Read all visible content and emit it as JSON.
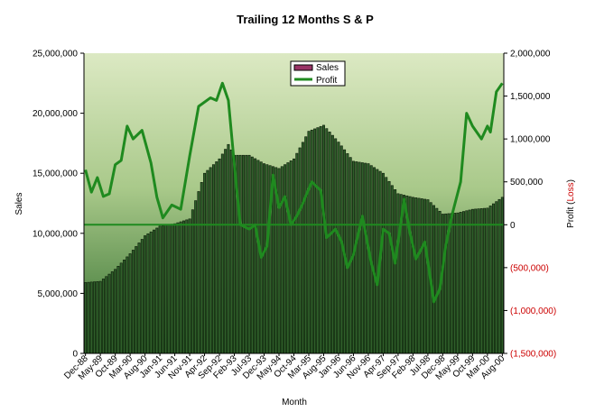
{
  "chart_data": {
    "type": "bar",
    "title": "Trailing 12 Months S & P",
    "xlabel": "Month",
    "ylabel": "Sales",
    "y2label_parts": [
      "Profit (",
      "Loss",
      ")"
    ],
    "ylim": [
      0,
      25000000
    ],
    "y2lim": [
      -1500000,
      2000000
    ],
    "grid": false,
    "legend_position": "top-center",
    "colors": {
      "plot_top": "#dce9c3",
      "plot_mid": "#a9c98a",
      "plot_bottom": "#2e6b2a",
      "bar_fill": "#2f5f2a",
      "bar_edge": "#0a1a08",
      "profit_line": "#1f8a1f",
      "zero_line": "#1f8a1f",
      "legend_sales_swatch": "#993366",
      "negative_tick": "#cc0000"
    },
    "legend": [
      {
        "label": "Sales",
        "kind": "bar"
      },
      {
        "label": "Profit",
        "kind": "line"
      }
    ],
    "y_ticks": [
      "0",
      "5,000,000",
      "10,000,000",
      "15,000,000",
      "20,000,000",
      "25,000,000"
    ],
    "y_tick_values": [
      0,
      5000000,
      10000000,
      15000000,
      20000000,
      25000000
    ],
    "y2_ticks": [
      "(1,500,000)",
      "(1,000,000)",
      "(500,000)",
      "0",
      "500,000",
      "1,000,000",
      "1,500,000",
      "2,000,000"
    ],
    "y2_tick_values": [
      -1500000,
      -1000000,
      -500000,
      0,
      500000,
      1000000,
      1500000,
      2000000
    ],
    "x_tick_labels": [
      "Dec-88",
      "May-89",
      "Oct-89",
      "Mar-90",
      "Aug-90",
      "Jan-91",
      "Jun-91",
      "Nov-91",
      "Apr-92",
      "Sep-92",
      "Feb-93",
      "Jul-93",
      "Dec-93",
      "May-94",
      "Oct-94",
      "Mar-95",
      "Aug-95",
      "Jan-96",
      "Jun-96",
      "Nov-96",
      "Apr-97",
      "Sep-97",
      "Feb-98",
      "Jul-98",
      "Dec-98",
      "May-99",
      "Oct-99",
      "Mar-00",
      "Aug-00"
    ],
    "x_tick_label_display": [
      "Dec-88",
      "May-89",
      "Oct-89",
      "Mar-90",
      "Aug-90",
      "Jan-91",
      "Jun-91",
      "Nov-91",
      "Apr-92",
      "Sep-92",
      "Feb-93",
      "Jul-93",
      "Dec-93",
      "May-94",
      "Oct-94",
      "Mar-95",
      "Aug-95",
      "Jan-96",
      "Jun-96",
      "Nov-96",
      "Apr-97",
      "Sep-97",
      "Feb-98",
      "Jul-98",
      "Dec-98",
      "May-99",
      "Oct-99",
      "Mar-00",
      "Aug-00"
    ],
    "tick_every": 5,
    "sales_keypoints": [
      {
        "month": "Dec-88",
        "value": 5900000
      },
      {
        "month": "May-89",
        "value": 6000000
      },
      {
        "month": "Oct-89",
        "value": 7000000
      },
      {
        "month": "Mar-90",
        "value": 8300000
      },
      {
        "month": "Aug-90",
        "value": 9800000
      },
      {
        "month": "Jan-91",
        "value": 10600000
      },
      {
        "month": "Jun-91",
        "value": 10800000
      },
      {
        "month": "Nov-91",
        "value": 11200000
      },
      {
        "month": "Apr-92",
        "value": 15000000
      },
      {
        "month": "Sep-92",
        "value": 16200000
      },
      {
        "month": "Dec-92",
        "value": 17400000
      },
      {
        "month": "Feb-93",
        "value": 16500000
      },
      {
        "month": "Jul-93",
        "value": 16500000
      },
      {
        "month": "Dec-93",
        "value": 15800000
      },
      {
        "month": "May-94",
        "value": 15400000
      },
      {
        "month": "Oct-94",
        "value": 16200000
      },
      {
        "month": "Mar-95",
        "value": 18500000
      },
      {
        "month": "Aug-95",
        "value": 19000000
      },
      {
        "month": "Jan-96",
        "value": 17600000
      },
      {
        "month": "Jun-96",
        "value": 16000000
      },
      {
        "month": "Nov-96",
        "value": 15800000
      },
      {
        "month": "Apr-97",
        "value": 15000000
      },
      {
        "month": "Sep-97",
        "value": 13300000
      },
      {
        "month": "Feb-98",
        "value": 13000000
      },
      {
        "month": "Jul-98",
        "value": 12800000
      },
      {
        "month": "Dec-98",
        "value": 11600000
      },
      {
        "month": "May-99",
        "value": 11700000
      },
      {
        "month": "Oct-99",
        "value": 12000000
      },
      {
        "month": "Mar-00",
        "value": 12100000
      },
      {
        "month": "Aug-00",
        "value": 13000000
      }
    ],
    "profit_keypoints": [
      {
        "month": "Dec-88",
        "value": 640000
      },
      {
        "month": "Feb-89",
        "value": 380000
      },
      {
        "month": "Apr-89",
        "value": 550000
      },
      {
        "month": "Jun-89",
        "value": 330000
      },
      {
        "month": "Aug-89",
        "value": 360000
      },
      {
        "month": "Oct-89",
        "value": 700000
      },
      {
        "month": "Dec-89",
        "value": 750000
      },
      {
        "month": "Feb-90",
        "value": 1150000
      },
      {
        "month": "Apr-90",
        "value": 1000000
      },
      {
        "month": "Jul-90",
        "value": 1100000
      },
      {
        "month": "Oct-90",
        "value": 720000
      },
      {
        "month": "Dec-90",
        "value": 320000
      },
      {
        "month": "Feb-91",
        "value": 80000
      },
      {
        "month": "May-91",
        "value": 230000
      },
      {
        "month": "Aug-91",
        "value": 180000
      },
      {
        "month": "Nov-91",
        "value": 800000
      },
      {
        "month": "Feb-92",
        "value": 1380000
      },
      {
        "month": "Jun-92",
        "value": 1480000
      },
      {
        "month": "Aug-92",
        "value": 1450000
      },
      {
        "month": "Oct-92",
        "value": 1650000
      },
      {
        "month": "Dec-92",
        "value": 1450000
      },
      {
        "month": "Feb-93",
        "value": 700000
      },
      {
        "month": "Apr-93",
        "value": 0
      },
      {
        "month": "Jul-93",
        "value": -50000
      },
      {
        "month": "Sep-93",
        "value": 0
      },
      {
        "month": "Nov-93",
        "value": -380000
      },
      {
        "month": "Jan-94",
        "value": -250000
      },
      {
        "month": "Mar-94",
        "value": 580000
      },
      {
        "month": "May-94",
        "value": 200000
      },
      {
        "month": "Jul-94",
        "value": 330000
      },
      {
        "month": "Sep-94",
        "value": 0
      },
      {
        "month": "Nov-94",
        "value": 100000
      },
      {
        "month": "Jan-95",
        "value": 250000
      },
      {
        "month": "Apr-95",
        "value": 500000
      },
      {
        "month": "Jul-95",
        "value": 400000
      },
      {
        "month": "Sep-95",
        "value": -150000
      },
      {
        "month": "Dec-95",
        "value": -50000
      },
      {
        "month": "Feb-96",
        "value": -200000
      },
      {
        "month": "Apr-96",
        "value": -500000
      },
      {
        "month": "Jun-96",
        "value": -350000
      },
      {
        "month": "Sep-96",
        "value": 100000
      },
      {
        "month": "Dec-96",
        "value": -450000
      },
      {
        "month": "Feb-97",
        "value": -700000
      },
      {
        "month": "Apr-97",
        "value": -50000
      },
      {
        "month": "Jun-97",
        "value": -100000
      },
      {
        "month": "Aug-97",
        "value": -450000
      },
      {
        "month": "Nov-97",
        "value": 300000
      },
      {
        "month": "Jan-98",
        "value": -100000
      },
      {
        "month": "Mar-98",
        "value": -400000
      },
      {
        "month": "Jun-98",
        "value": -200000
      },
      {
        "month": "Sep-98",
        "value": -900000
      },
      {
        "month": "Nov-98",
        "value": -750000
      },
      {
        "month": "Jan-99",
        "value": -250000
      },
      {
        "month": "Mar-99",
        "value": 100000
      },
      {
        "month": "Jun-99",
        "value": 500000
      },
      {
        "month": "Aug-99",
        "value": 1300000
      },
      {
        "month": "Oct-99",
        "value": 1150000
      },
      {
        "month": "Jan-00",
        "value": 1000000
      },
      {
        "month": "Mar-00",
        "value": 1150000
      },
      {
        "month": "Apr-00",
        "value": 1080000
      },
      {
        "month": "Jun-00",
        "value": 1550000
      },
      {
        "month": "Aug-00",
        "value": 1650000
      }
    ]
  }
}
